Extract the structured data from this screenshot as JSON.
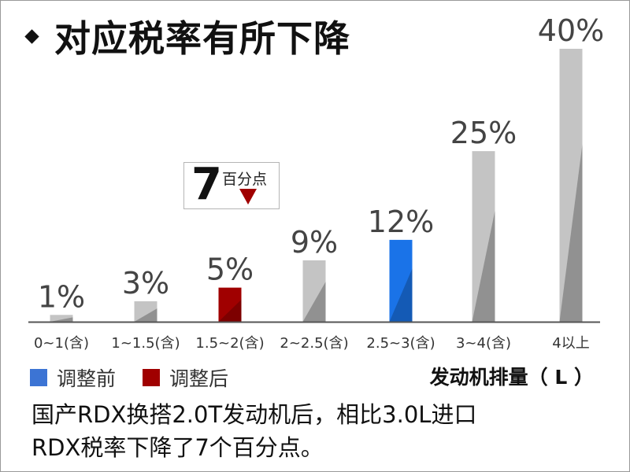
{
  "title": "对应税率有所下降",
  "legend": [
    {
      "label": "调整前",
      "color": "#3c74d4"
    },
    {
      "label": "调整后",
      "color": "#a00000"
    }
  ],
  "callout": {
    "number": "7",
    "text": "百分点",
    "arrow_color": "#a00000"
  },
  "caption": {
    "line1": "国产RDX换搭2.0T发动机后，相比3.0L进口",
    "line2": "RDX税率下降了7个百分点。"
  },
  "chart_data": {
    "type": "bar",
    "title": "对应税率有所下降",
    "xlabel": "发动机排量（ L ）",
    "ylabel": "",
    "ylim": [
      0,
      40
    ],
    "categories": [
      "0~1(含)",
      "1~1.5(含)",
      "1.5~2(含)",
      "2~2.5(含)",
      "2.5~3(含)",
      "3~4(含)",
      "4以上"
    ],
    "values": [
      1,
      3,
      5,
      9,
      12,
      25,
      40
    ],
    "value_labels": [
      "1%",
      "3%",
      "5%",
      "9%",
      "12%",
      "25%",
      "40%"
    ],
    "bar_colors": [
      "#c4c4c4",
      "#c4c4c4",
      "#a00000",
      "#c4c4c4",
      "#1a73e8",
      "#c4c4c4",
      "#c4c4c4"
    ],
    "grid": false
  }
}
